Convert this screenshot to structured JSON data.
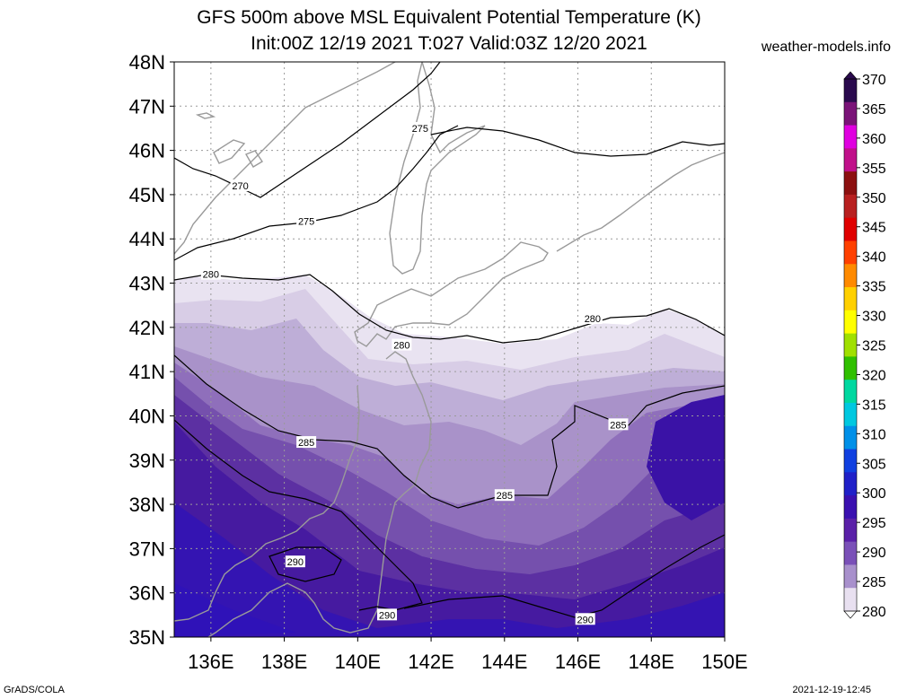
{
  "title_line1": "GFS 500m above MSL Equivalent Potential Temperature (K)",
  "title_line2": "Init:00Z 12/19 2021 T:027 Valid:03Z 12/20 2021",
  "credit": "weather-models.info",
  "footer_left": "GrADS/COLA",
  "footer_right": "2021-12-19-12:45",
  "map": {
    "lat_labels": [
      "48N",
      "47N",
      "46N",
      "45N",
      "44N",
      "43N",
      "42N",
      "41N",
      "40N",
      "39N",
      "38N",
      "37N",
      "36N",
      "35N"
    ],
    "lon_labels": [
      "136E",
      "138E",
      "140E",
      "142E",
      "144E",
      "146E",
      "148E",
      "150E"
    ],
    "lat_range": [
      35,
      48
    ],
    "lon_range": [
      135,
      150
    ],
    "contour_labels": [
      {
        "value": "275",
        "lon": 141.7,
        "lat": 46.5
      },
      {
        "value": "270",
        "lon": 136.8,
        "lat": 45.2
      },
      {
        "value": "275",
        "lon": 138.6,
        "lat": 44.4
      },
      {
        "value": "280",
        "lon": 136.0,
        "lat": 43.2
      },
      {
        "value": "280",
        "lon": 146.4,
        "lat": 42.2
      },
      {
        "value": "280",
        "lon": 141.2,
        "lat": 41.6
      },
      {
        "value": "285",
        "lon": 147.1,
        "lat": 39.8
      },
      {
        "value": "285",
        "lon": 138.6,
        "lat": 39.4
      },
      {
        "value": "285",
        "lon": 144.0,
        "lat": 38.2
      },
      {
        "value": "290",
        "lon": 138.3,
        "lat": 36.7
      },
      {
        "value": "290",
        "lon": 140.8,
        "lat": 35.5
      },
      {
        "value": "290",
        "lon": 146.2,
        "lat": 35.4
      }
    ]
  },
  "colorbar": {
    "labels": [
      "370",
      "365",
      "360",
      "355",
      "350",
      "345",
      "340",
      "335",
      "330",
      "325",
      "320",
      "315",
      "310",
      "305",
      "300",
      "295",
      "290",
      "285",
      "280"
    ],
    "colors": [
      "#2a0a4e",
      "#7a1378",
      "#e000e0",
      "#c0108a",
      "#8c1010",
      "#b82020",
      "#e00000",
      "#ff4000",
      "#ff8a00",
      "#ffd000",
      "#ffff00",
      "#a0e000",
      "#30c000",
      "#00d8a0",
      "#00c8e0",
      "#0090e8",
      "#1040e0",
      "#2020c8",
      "#3a10b0",
      "#5a20a8",
      "#7a50b8",
      "#a890cc",
      "#e8e0f0"
    ]
  }
}
